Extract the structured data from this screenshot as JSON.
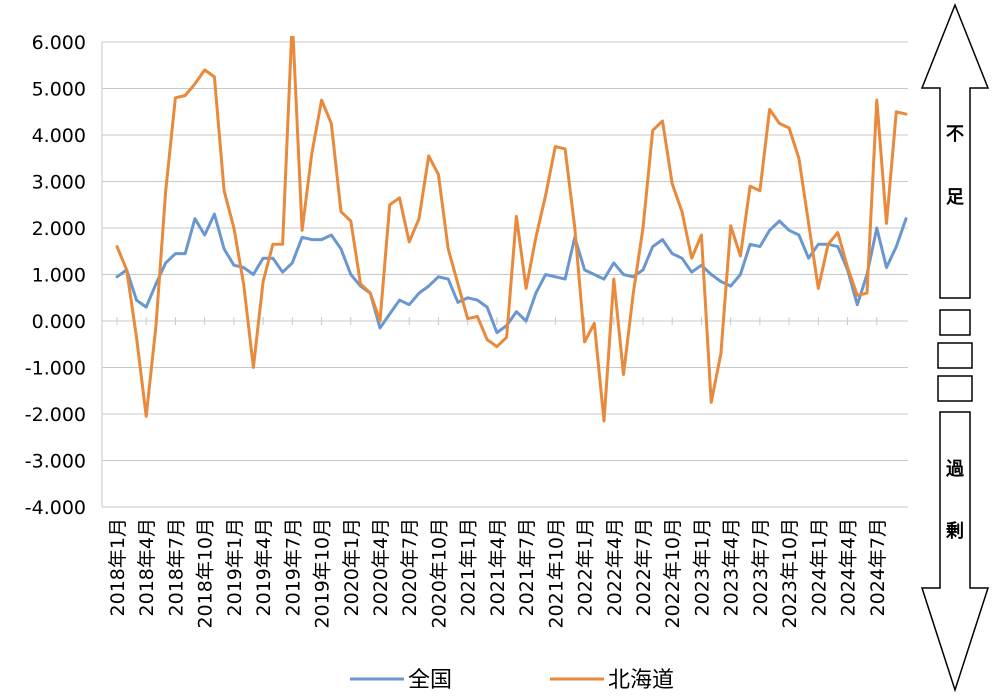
{
  "chart_data": {
    "type": "line",
    "title": "",
    "xlabel": "",
    "ylabel": "",
    "ylim": [
      -4.0,
      6.0
    ],
    "y_ticks": [
      "6.000",
      "5.000",
      "4.000",
      "3.000",
      "2.000",
      "1.000",
      "0.000",
      "-1.000",
      "-2.000",
      "-3.000",
      "-4.000"
    ],
    "y_tick_values": [
      6,
      5,
      4,
      3,
      2,
      1,
      0,
      -1,
      -2,
      -3,
      -4
    ],
    "x_tick_labels": [
      "2018年1月",
      "2018年4月",
      "2018年7月",
      "2018年10月",
      "2019年1月",
      "2019年4月",
      "2019年7月",
      "2019年10月",
      "2020年1月",
      "2020年4月",
      "2020年7月",
      "2020年10月",
      "2021年1月",
      "2021年4月",
      "2021年7月",
      "2021年10月",
      "2022年1月",
      "2022年4月",
      "2022年7月",
      "2022年10月",
      "2023年1月",
      "2023年4月",
      "2023年7月",
      "2023年10月",
      "2024年1月",
      "2024年4月",
      "2024年7月"
    ],
    "x_tick_every": 3,
    "grid": "horizontal",
    "legend": "bottom",
    "series": [
      {
        "name": "全国",
        "color": "#6a97cf",
        "values": [
          0.95,
          1.1,
          0.45,
          0.3,
          0.8,
          1.25,
          1.45,
          1.45,
          2.2,
          1.85,
          2.3,
          1.55,
          1.2,
          1.15,
          1.0,
          1.35,
          1.35,
          1.05,
          1.25,
          1.8,
          1.75,
          1.75,
          1.85,
          1.55,
          1.0,
          0.75,
          0.6,
          -0.15,
          0.15,
          0.45,
          0.35,
          0.6,
          0.75,
          0.95,
          0.9,
          0.4,
          0.5,
          0.45,
          0.3,
          -0.25,
          -0.1,
          0.2,
          0.0,
          0.6,
          1.0,
          0.95,
          0.9,
          1.8,
          1.1,
          1.0,
          0.9,
          1.25,
          1.0,
          0.95,
          1.1,
          1.6,
          1.75,
          1.45,
          1.35,
          1.05,
          1.2,
          1.0,
          0.85,
          0.75,
          1.0,
          1.65,
          1.6,
          1.95,
          2.15,
          1.95,
          1.85,
          1.35,
          1.65,
          1.65,
          1.6,
          1.1,
          0.35,
          1.0,
          2.0,
          1.15,
          1.6,
          2.2
        ]
      },
      {
        "name": "北海道",
        "color": "#e8893c",
        "values": [
          1.6,
          1.1,
          -0.35,
          -2.05,
          -0.1,
          2.8,
          4.8,
          4.85,
          5.1,
          5.4,
          5.25,
          2.8,
          2.0,
          0.8,
          -1.0,
          0.85,
          1.65,
          1.65,
          6.5,
          1.95,
          3.6,
          4.75,
          4.25,
          2.35,
          2.15,
          0.8,
          0.6,
          0.0,
          2.5,
          2.65,
          1.7,
          2.2,
          3.55,
          3.15,
          1.55,
          0.8,
          0.05,
          0.1,
          -0.4,
          -0.55,
          -0.35,
          2.25,
          0.7,
          1.8,
          2.7,
          3.75,
          3.7,
          2.0,
          -0.45,
          -0.05,
          -2.15,
          0.9,
          -1.15,
          0.6,
          2.0,
          4.1,
          4.3,
          2.95,
          2.35,
          1.35,
          1.85,
          -1.75,
          -0.7,
          2.05,
          1.4,
          2.9,
          2.8,
          4.55,
          4.25,
          4.15,
          3.5,
          2.1,
          0.7,
          1.65,
          1.9,
          1.15,
          0.55,
          0.6,
          4.75,
          2.1,
          4.5,
          4.45
        ]
      }
    ]
  },
  "side_indicator": {
    "top_label": [
      "不",
      "足"
    ],
    "bottom_label": [
      "過",
      "剰"
    ]
  }
}
